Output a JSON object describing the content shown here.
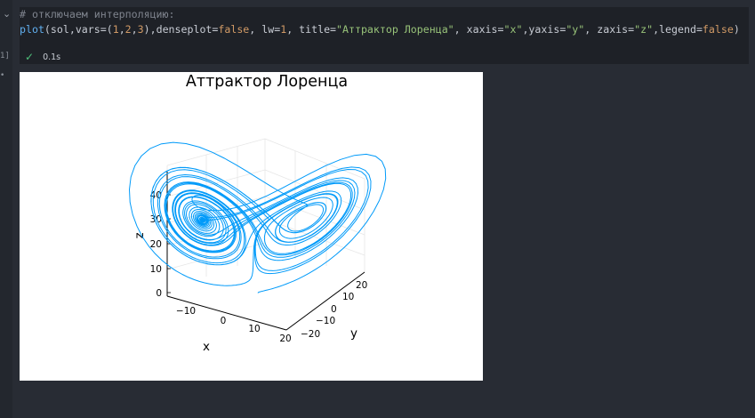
{
  "cell": {
    "execution_label": "1]",
    "comment": "# отключаем интерполяцию:",
    "code": {
      "fn": "plot",
      "p1": "(sol,vars=(",
      "n1": "1",
      "c1": ",",
      "n2": "2",
      "c2": ",",
      "n3": "3",
      "p2": "),denseplot=",
      "b1": "false",
      "p3": ", lw=",
      "n4": "1",
      "p4": ", title=",
      "s1": "\"Аттрактор Лоренца\"",
      "p5": ", xaxis=",
      "s2": "\"x\"",
      "p6": ",yaxis=",
      "s3": "\"y\"",
      "p7": ", zaxis=",
      "s4": "\"z\"",
      "p8": ",legend=",
      "b2": "false",
      "p9": ")"
    },
    "status_time": "0.1s"
  },
  "icons": {
    "collapse": "chevron-down-icon",
    "success": "check-icon"
  },
  "colors": {
    "series": "#009af9",
    "background": "#282c34",
    "plot_bg": "#ffffff"
  },
  "chart_data": {
    "type": "line",
    "projection": "3d",
    "title": "Аттрактор Лоренца",
    "xlabel": "x",
    "ylabel": "y",
    "zlabel": "z",
    "legend": false,
    "grid": true,
    "xticks": [
      "−10",
      "0",
      "10",
      "20"
    ],
    "yticks": [
      "−20",
      "−10",
      "0",
      "10",
      "20"
    ],
    "zticks": [
      "0",
      "10",
      "20",
      "30",
      "40"
    ],
    "series": [
      {
        "values_description_none": null,
        "color": "#009af9",
        "line_width": 1
      }
    ]
  }
}
